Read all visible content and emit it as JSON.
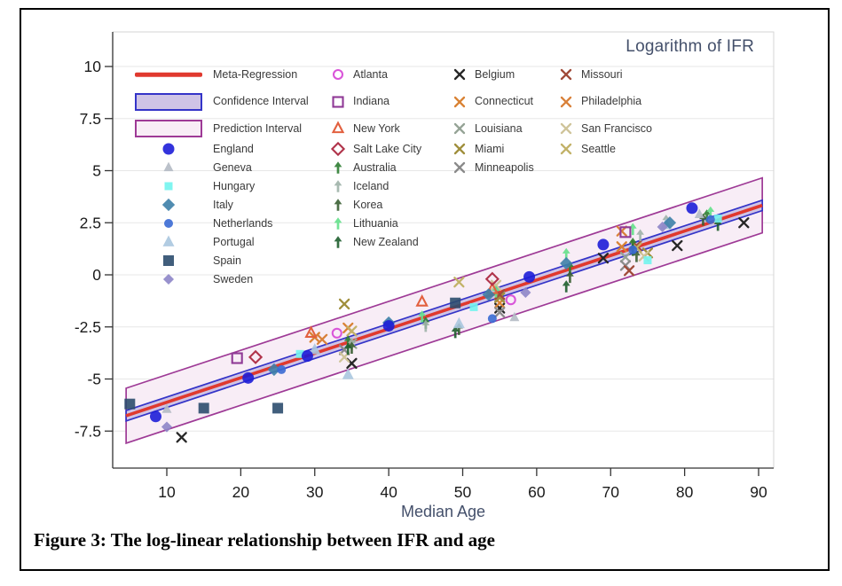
{
  "figure": {
    "caption": "Figure 3: The log-linear relationship between IFR and age"
  },
  "chart_data": {
    "type": "scatter",
    "title": "Logarithm of IFR",
    "xlabel": "Median Age",
    "ylabel": "Logarithm of IFR",
    "x_ticks": [
      10,
      20,
      30,
      40,
      50,
      60,
      70,
      80,
      90
    ],
    "y_ticks": [
      10,
      7.5,
      5,
      2.5,
      0,
      -2.5,
      -5,
      -7.5
    ],
    "xlim": [
      2.5,
      92
    ],
    "ylim": [
      -9.3,
      11.6
    ],
    "grid": "horizontal-only",
    "regression": {
      "label": "Meta-Regression",
      "slope": 0.1174,
      "intercept": -7.29,
      "x_range": [
        4.5,
        90.5
      ],
      "color": "#e0392e"
    },
    "confidence_interval": {
      "label": "Confidence Interval",
      "halfwidth": 0.25,
      "fill": "#cfc4e6",
      "stroke": "#3434c8"
    },
    "prediction_interval": {
      "label": "Prediction Interval",
      "halfwidth": 1.32,
      "fill": "#f8edf6",
      "stroke": "#9e3a96"
    },
    "series": [
      {
        "name": "England",
        "marker": "circle",
        "size": 13,
        "color": "#1d1dd8",
        "legend_col": 0,
        "legend_row": 3,
        "points": [
          [
            8.5,
            -6.8
          ],
          [
            21,
            -4.95
          ],
          [
            29,
            -3.9
          ],
          [
            40,
            -2.45
          ],
          [
            59,
            -0.1
          ],
          [
            69,
            1.45
          ],
          [
            81,
            3.2
          ]
        ]
      },
      {
        "name": "Geneva",
        "marker": "triangle",
        "size": 11,
        "color": "#b4bac4",
        "legend_col": 0,
        "legend_row": 4,
        "points": [
          [
            10,
            -6.45
          ],
          [
            57,
            -2.05
          ],
          [
            82,
            2.9
          ]
        ]
      },
      {
        "name": "Hungary",
        "marker": "square",
        "size": 9,
        "color": "#72f4ee",
        "legend_col": 0,
        "legend_row": 5,
        "points": [
          [
            28,
            -3.8
          ],
          [
            51.5,
            -1.55
          ],
          [
            75,
            0.7
          ],
          [
            84.5,
            2.7
          ]
        ]
      },
      {
        "name": "Italy",
        "marker": "diamond",
        "size": 13,
        "color": "#3d7fa8",
        "legend_col": 0,
        "legend_row": 6,
        "points": [
          [
            24.5,
            -4.55
          ],
          [
            40,
            -2.3
          ],
          [
            53.5,
            -0.95
          ],
          [
            64,
            0.55
          ],
          [
            78,
            2.5
          ]
        ]
      },
      {
        "name": "Netherlands",
        "marker": "circle",
        "size": 10,
        "color": "#3a6ad4",
        "legend_col": 0,
        "legend_row": 7,
        "points": [
          [
            25.5,
            -4.55
          ],
          [
            54,
            -2.1
          ],
          [
            73,
            1.2
          ],
          [
            83.5,
            2.65
          ]
        ]
      },
      {
        "name": "Portugal",
        "marker": "triangle",
        "size": 13,
        "color": "#aac7df",
        "legend_col": 0,
        "legend_row": 8,
        "points": [
          [
            30,
            -3.6
          ],
          [
            34.5,
            -4.8
          ],
          [
            49.5,
            -2.35
          ],
          [
            77.5,
            2.4
          ]
        ]
      },
      {
        "name": "Spain",
        "marker": "square",
        "size": 12,
        "color": "#2c4d6e",
        "legend_col": 0,
        "legend_row": 9,
        "points": [
          [
            5,
            -6.2
          ],
          [
            15,
            -6.4
          ],
          [
            25,
            -6.4
          ],
          [
            49,
            -1.35
          ]
        ]
      },
      {
        "name": "Sweden",
        "marker": "diamond",
        "size": 11,
        "color": "#8d85c8",
        "legend_col": 0,
        "legend_row": 10,
        "points": [
          [
            10,
            -7.3
          ],
          [
            58.5,
            -0.85
          ],
          [
            77,
            2.3
          ]
        ]
      },
      {
        "name": "Atlanta",
        "marker": "circle-open",
        "size": 10,
        "color": "#d956d9",
        "legend_col": 1,
        "legend_row": 0,
        "points": [
          [
            33,
            -2.8
          ],
          [
            56.5,
            -1.2
          ]
        ]
      },
      {
        "name": "Indiana",
        "marker": "square-open",
        "size": 11,
        "color": "#8f3a96",
        "legend_col": 1,
        "legend_row": 1,
        "points": [
          [
            19.5,
            -4.0
          ],
          [
            72,
            2.05
          ]
        ]
      },
      {
        "name": "New York",
        "marker": "triangle-open",
        "size": 11,
        "color": "#e2603f",
        "legend_col": 1,
        "legend_row": 2,
        "points": [
          [
            29.5,
            -2.8
          ],
          [
            44.5,
            -1.3
          ],
          [
            54,
            -0.7
          ]
        ]
      },
      {
        "name": "Salt Lake City",
        "marker": "diamond-open",
        "size": 12,
        "color": "#b0334a",
        "legend_col": 1,
        "legend_row": 3,
        "points": [
          [
            22,
            -3.95
          ],
          [
            54,
            -0.2
          ]
        ]
      },
      {
        "name": "Australia",
        "marker": "arrow",
        "size": 13,
        "color": "#2e7d32",
        "legend_col": 1,
        "legend_row": 4,
        "points": [
          [
            34.5,
            -3.2
          ],
          [
            45,
            -2.3
          ],
          [
            64.5,
            0.35
          ],
          [
            73,
            1.5
          ],
          [
            83,
            2.85
          ]
        ]
      },
      {
        "name": "Iceland",
        "marker": "arrow",
        "size": 13,
        "color": "#9fb3a8",
        "legend_col": 1,
        "legend_row": 5,
        "points": [
          [
            35,
            -3.3
          ],
          [
            45,
            -2.45
          ],
          [
            74,
            1.9
          ],
          [
            77.5,
            2.6
          ]
        ]
      },
      {
        "name": "Korea",
        "marker": "arrow",
        "size": 13,
        "color": "#3a5f33",
        "legend_col": 1,
        "legend_row": 6,
        "points": [
          [
            35,
            -3.5
          ],
          [
            49.5,
            -2.6
          ],
          [
            64.5,
            -0.1
          ],
          [
            73.5,
            0.9
          ],
          [
            82.5,
            2.65
          ]
        ]
      },
      {
        "name": "Lithuania",
        "marker": "arrow",
        "size": 13,
        "color": "#63e08a",
        "legend_col": 1,
        "legend_row": 7,
        "points": [
          [
            44.5,
            -2.0
          ],
          [
            54.5,
            -0.8
          ],
          [
            64,
            1.0
          ],
          [
            73,
            2.2
          ],
          [
            83.5,
            3.0
          ]
        ]
      },
      {
        "name": "New Zealand",
        "marker": "arrow",
        "size": 13,
        "color": "#1e5e2e",
        "legend_col": 1,
        "legend_row": 8,
        "points": [
          [
            34.5,
            -3.55
          ],
          [
            49,
            -2.75
          ],
          [
            64,
            -0.55
          ],
          [
            73,
            1.2
          ],
          [
            84.5,
            2.4
          ]
        ]
      },
      {
        "name": "Belgium",
        "marker": "x",
        "size": 10,
        "color": "#262626",
        "legend_col": 2,
        "legend_row": 0,
        "points": [
          [
            12,
            -7.8
          ],
          [
            35,
            -4.25
          ],
          [
            55,
            -1.6
          ],
          [
            69,
            0.8
          ],
          [
            79,
            1.4
          ],
          [
            88,
            2.5
          ]
        ]
      },
      {
        "name": "Connecticut",
        "marker": "x",
        "size": 10,
        "color": "#d98234",
        "legend_col": 2,
        "legend_row": 1,
        "points": [
          [
            30,
            -3.0
          ],
          [
            34.5,
            -2.55
          ],
          [
            55,
            -1.35
          ],
          [
            71.5,
            1.35
          ]
        ]
      },
      {
        "name": "Louisiana",
        "marker": "x",
        "size": 10,
        "color": "#95a396",
        "legend_col": 2,
        "legend_row": 2,
        "points": [
          [
            35,
            -3.3
          ],
          [
            55,
            -1.05
          ],
          [
            72,
            0.85
          ]
        ]
      },
      {
        "name": "Miami",
        "marker": "x",
        "size": 10,
        "color": "#a08f3c",
        "legend_col": 2,
        "legend_row": 3,
        "points": [
          [
            34,
            -1.4
          ],
          [
            55,
            -1.1
          ],
          [
            75,
            1.05
          ]
        ]
      },
      {
        "name": "Minneapolis",
        "marker": "x",
        "size": 10,
        "color": "#8a8a8a",
        "legend_col": 2,
        "legend_row": 4,
        "points": [
          [
            34,
            -3.6
          ],
          [
            55,
            -1.8
          ],
          [
            72,
            0.45
          ]
        ]
      },
      {
        "name": "Missouri",
        "marker": "x",
        "size": 10,
        "color": "#a04a38",
        "legend_col": 3,
        "legend_row": 0,
        "points": [
          [
            55,
            -0.95
          ],
          [
            72.5,
            0.2
          ],
          [
            73.5,
            1.4
          ]
        ]
      },
      {
        "name": "Philadelphia",
        "marker": "x",
        "size": 10,
        "color": "#d9813a",
        "legend_col": 3,
        "legend_row": 1,
        "points": [
          [
            31,
            -3.1
          ],
          [
            71.5,
            2.1
          ]
        ]
      },
      {
        "name": "San Francisco",
        "marker": "x",
        "size": 10,
        "color": "#cfc49a",
        "legend_col": 3,
        "legend_row": 2,
        "points": [
          [
            34,
            -3.95
          ],
          [
            54.5,
            -0.5
          ],
          [
            74.5,
            0.9
          ]
        ]
      },
      {
        "name": "Seattle",
        "marker": "x",
        "size": 10,
        "color": "#c2b268",
        "legend_col": 3,
        "legend_row": 3,
        "points": [
          [
            35,
            -2.7
          ],
          [
            49.5,
            -0.35
          ],
          [
            73.5,
            1.3
          ]
        ]
      }
    ]
  }
}
